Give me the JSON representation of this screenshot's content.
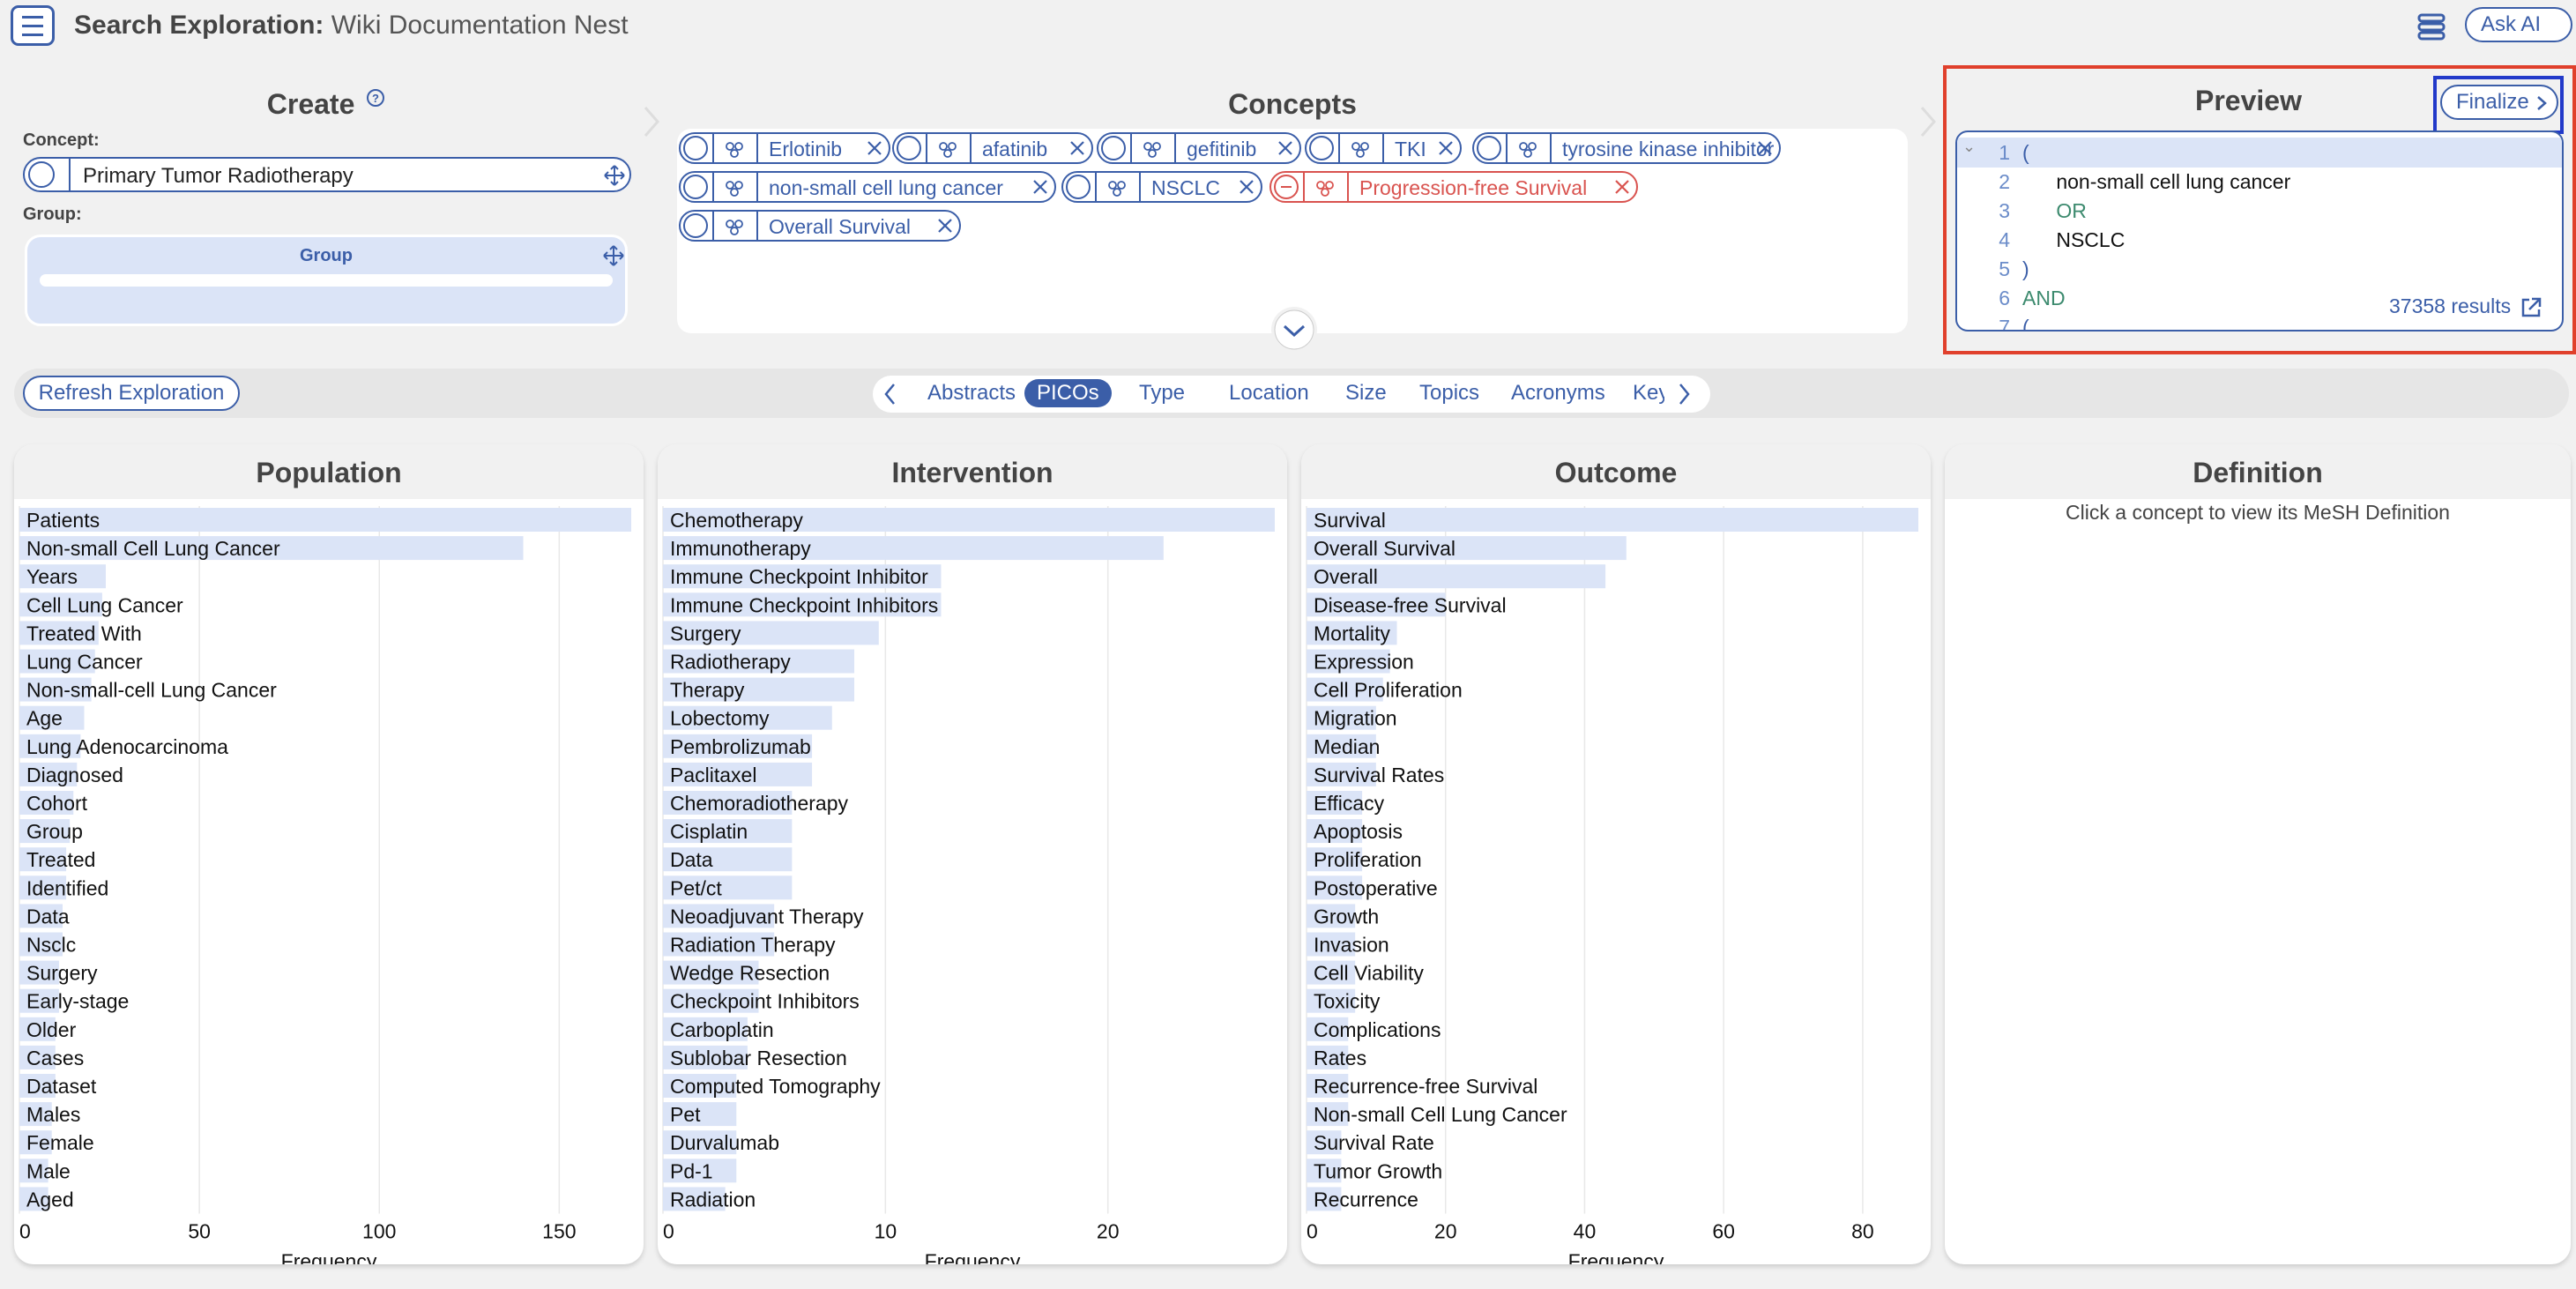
{
  "header": {
    "title_bold": "Search Exploration:",
    "title_rest": " Wiki Documentation Nest",
    "ask_ai": "Ask AI"
  },
  "create": {
    "title": "Create",
    "concept_label": "Concept:",
    "concept_value": "Primary Tumor Radiotherapy",
    "group_label": "Group:",
    "group_box_label": "Group"
  },
  "concepts": {
    "title": "Concepts",
    "chips": [
      {
        "label": "Erlotinib",
        "state": "normal"
      },
      {
        "label": "afatinib",
        "state": "normal"
      },
      {
        "label": "gefitinib",
        "state": "normal"
      },
      {
        "label": "TKI",
        "state": "normal"
      },
      {
        "label": "tyrosine kinase inhibitor",
        "state": "normal"
      },
      {
        "label": "non-small cell lung cancer",
        "state": "normal"
      },
      {
        "label": "NSCLC",
        "state": "normal"
      },
      {
        "label": "Progression-free Survival",
        "state": "excluded"
      },
      {
        "label": "Overall Survival",
        "state": "normal"
      }
    ]
  },
  "preview": {
    "title": "Preview",
    "finalize": "Finalize",
    "lines": [
      {
        "n": "1",
        "text": "(",
        "kind": "paren"
      },
      {
        "n": "2",
        "text": "  non-small cell lung cancer",
        "kind": "term"
      },
      {
        "n": "3",
        "text": "  OR",
        "kind": "kw"
      },
      {
        "n": "4",
        "text": "  NSCLC",
        "kind": "term"
      },
      {
        "n": "5",
        "text": ")",
        "kind": "paren"
      },
      {
        "n": "6",
        "text": "AND",
        "kind": "kw"
      },
      {
        "n": "7",
        "text": "(",
        "kind": "paren"
      }
    ],
    "results": "37358 results"
  },
  "toolbar": {
    "refresh": "Refresh Exploration",
    "tabs": [
      "Abstracts",
      "PICOs",
      "Type",
      "Location",
      "Size",
      "Topics",
      "Acronyms",
      "Key"
    ],
    "active_tab": "PICOs"
  },
  "colors": {
    "accent": "#3b5ea8",
    "bar": "#dbe4f7",
    "excluded": "#d9534f",
    "highlight_red": "#e0402c",
    "highlight_blue": "#2139c9"
  },
  "chart_data": [
    {
      "type": "bar",
      "orientation": "horizontal",
      "title": "Population",
      "xlabel": "Frequency",
      "xticks": [
        0,
        50,
        100,
        150
      ],
      "xlim": [
        0,
        170
      ],
      "categories": [
        "Patients",
        "Non-small Cell Lung Cancer",
        "Years",
        "Cell Lung Cancer",
        "Treated With",
        "Lung Cancer",
        "Non-small-cell Lung Cancer",
        "Age",
        "Lung Adenocarcinoma",
        "Diagnosed",
        "Cohort",
        "Group",
        "Treated",
        "Identified",
        "Data",
        "Nsclc",
        "Surgery",
        "Early-stage",
        "Older",
        "Cases",
        "Dataset",
        "Males",
        "Female",
        "Male",
        "Aged"
      ],
      "values": [
        170,
        140,
        24,
        23,
        22,
        21,
        20,
        18,
        17,
        16,
        15,
        14,
        13,
        13,
        12,
        12,
        11,
        11,
        10,
        10,
        10,
        9,
        9,
        8,
        8
      ]
    },
    {
      "type": "bar",
      "orientation": "horizontal",
      "title": "Intervention",
      "xlabel": "Frequency",
      "xticks": [
        0,
        10,
        20
      ],
      "xlim": [
        0,
        27.5
      ],
      "categories": [
        "Chemotherapy",
        "Immunotherapy",
        "Immune Checkpoint Inhibitor",
        "Immune Checkpoint Inhibitors",
        "Surgery",
        "Radiotherapy",
        "Therapy",
        "Lobectomy",
        "Pembrolizumab",
        "Paclitaxel",
        "Chemoradiotherapy",
        "Cisplatin",
        "Data",
        "Pet/ct",
        "Neoadjuvant Therapy",
        "Radiation Therapy",
        "Wedge Resection",
        "Checkpoint Inhibitors",
        "Carboplatin",
        "Sublobar Resection",
        "Computed Tomography",
        "Pet",
        "Durvalumab",
        "Pd-1",
        "Radiation"
      ],
      "values": [
        27.5,
        22.5,
        12.5,
        12.5,
        9.7,
        8.6,
        8.6,
        7.6,
        6.7,
        6.7,
        5.8,
        5.8,
        5.8,
        5.8,
        5.0,
        5.0,
        4.3,
        4.3,
        3.8,
        3.8,
        3.3,
        3.3,
        3.3,
        3.3,
        2.8
      ]
    },
    {
      "type": "bar",
      "orientation": "horizontal",
      "title": "Outcome",
      "xlabel": "Frequency",
      "xticks": [
        0,
        20,
        40,
        60,
        80
      ],
      "xlim": [
        0,
        88
      ],
      "categories": [
        "Survival",
        "Overall Survival",
        "Overall",
        "Disease-free Survival",
        "Mortality",
        "Expression",
        "Cell Proliferation",
        "Migration",
        "Median",
        "Survival Rates",
        "Efficacy",
        "Apoptosis",
        "Proliferation",
        "Postoperative",
        "Growth",
        "Invasion",
        "Cell Viability",
        "Toxicity",
        "Complications",
        "Rates",
        "Recurrence-free Survival",
        "Non-small Cell Lung Cancer",
        "Survival Rate",
        "Tumor Growth",
        "Recurrence"
      ],
      "values": [
        88,
        46,
        43,
        20,
        13,
        12,
        11,
        10,
        10,
        10,
        8,
        8,
        8,
        8,
        7,
        7,
        7,
        7,
        6,
        6,
        6,
        6,
        5,
        5,
        5
      ]
    }
  ],
  "definition": {
    "title": "Definition",
    "text": "Click a concept to view its MeSH Definition"
  }
}
